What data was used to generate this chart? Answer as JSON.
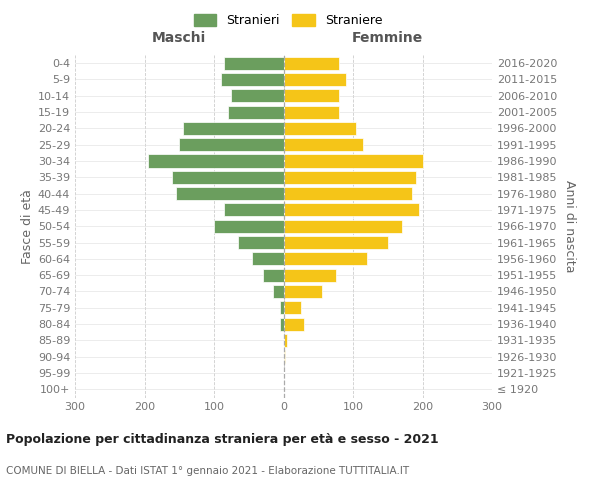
{
  "age_groups": [
    "100+",
    "95-99",
    "90-94",
    "85-89",
    "80-84",
    "75-79",
    "70-74",
    "65-69",
    "60-64",
    "55-59",
    "50-54",
    "45-49",
    "40-44",
    "35-39",
    "30-34",
    "25-29",
    "20-24",
    "15-19",
    "10-14",
    "5-9",
    "0-4"
  ],
  "birth_years": [
    "≤ 1920",
    "1921-1925",
    "1926-1930",
    "1931-1935",
    "1936-1940",
    "1941-1945",
    "1946-1950",
    "1951-1955",
    "1956-1960",
    "1961-1965",
    "1966-1970",
    "1971-1975",
    "1976-1980",
    "1981-1985",
    "1986-1990",
    "1991-1995",
    "1996-2000",
    "2001-2005",
    "2006-2010",
    "2011-2015",
    "2016-2020"
  ],
  "maschi": [
    0,
    0,
    0,
    0,
    5,
    5,
    15,
    30,
    45,
    65,
    100,
    85,
    155,
    160,
    195,
    150,
    145,
    80,
    75,
    90,
    85
  ],
  "femmine": [
    0,
    0,
    2,
    5,
    30,
    25,
    55,
    75,
    120,
    150,
    170,
    195,
    185,
    190,
    200,
    115,
    105,
    80,
    80,
    90,
    80
  ],
  "color_maschi": "#6b9e5e",
  "color_femmine": "#f5c518",
  "title": "Popolazione per cittadinanza straniera per età e sesso - 2021",
  "subtitle": "COMUNE DI BIELLA - Dati ISTAT 1° gennaio 2021 - Elaborazione TUTTITALIA.IT",
  "xlabel_left": "Maschi",
  "xlabel_right": "Femmine",
  "ylabel_left": "Fasce di età",
  "ylabel_right": "Anni di nascita",
  "legend_maschi": "Stranieri",
  "legend_femmine": "Straniere",
  "xlim": 300,
  "xticks": [
    -300,
    -200,
    -100,
    0,
    100,
    200,
    300
  ],
  "xticklabels": [
    "300",
    "200",
    "100",
    "0",
    "100",
    "200",
    "300"
  ],
  "background_color": "#ffffff",
  "grid_color": "#cccccc",
  "grid_color_y": "#dddddd"
}
